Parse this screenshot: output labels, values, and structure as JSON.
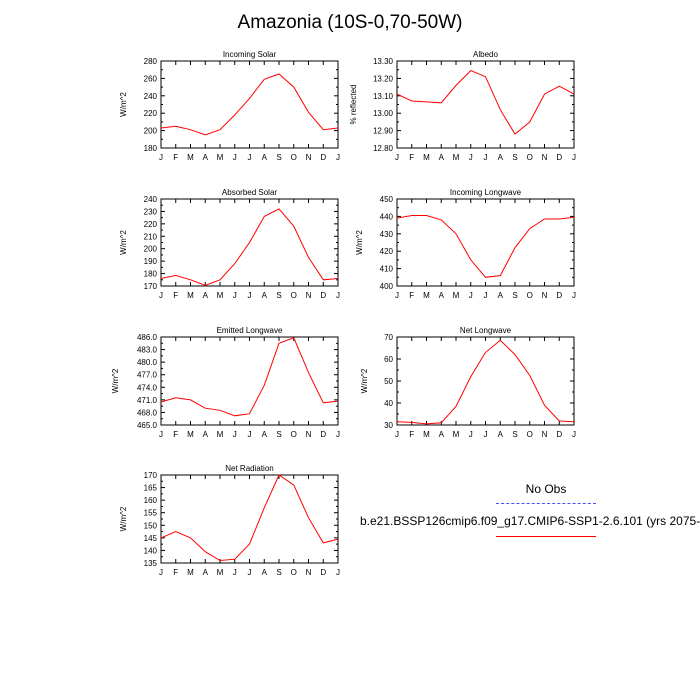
{
  "figure": {
    "title": "Amazonia (10S-0,70-50W)",
    "legend": {
      "obs_label": "No Obs",
      "case_label": "b.e21.BSSP126cmip6.f09_g17.CMIP6-SSP1-2.6.101 (yrs 2075-",
      "obs_color": "#4d4dff",
      "case_color": "#ff0000"
    }
  },
  "chart_data": [
    {
      "type": "line",
      "title": "Incoming Solar",
      "xlabel": "",
      "ylabel": "W/m^2",
      "categories": [
        "J",
        "F",
        "M",
        "A",
        "M",
        "J",
        "J",
        "A",
        "S",
        "O",
        "N",
        "D",
        "J"
      ],
      "ylim": [
        180,
        280
      ],
      "yticks": [
        180,
        200,
        220,
        240,
        260,
        280
      ],
      "ytick_labels": [
        "180",
        "200",
        "220",
        "240",
        "260",
        "280"
      ],
      "series": [
        {
          "name": "b.e21.BSSP126cmip6.f09_g17.CMIP6-SSP1-2.6.101",
          "color": "#ff0000",
          "values": [
            203,
            205,
            201,
            195,
            201,
            218,
            237,
            259,
            265,
            250,
            221,
            201,
            203
          ]
        }
      ]
    },
    {
      "type": "line",
      "title": "Albedo",
      "xlabel": "",
      "ylabel": "% reflected",
      "categories": [
        "J",
        "F",
        "M",
        "A",
        "M",
        "J",
        "J",
        "A",
        "S",
        "O",
        "N",
        "D",
        "J"
      ],
      "ylim": [
        12.8,
        13.3
      ],
      "yticks": [
        12.8,
        12.9,
        13.0,
        13.1,
        13.2,
        13.3
      ],
      "ytick_labels": [
        "12.80",
        "12.90",
        "13.00",
        "13.10",
        "13.20",
        "13.30"
      ],
      "series": [
        {
          "name": "b.e21.BSSP126cmip6.f09_g17.CMIP6-SSP1-2.6.101",
          "color": "#ff0000",
          "values": [
            13.11,
            13.07,
            13.065,
            13.06,
            13.16,
            13.245,
            13.21,
            13.02,
            12.88,
            12.95,
            13.11,
            13.155,
            13.11
          ]
        }
      ]
    },
    {
      "type": "line",
      "title": "Absorbed Solar",
      "xlabel": "",
      "ylabel": "W/m^2",
      "categories": [
        "J",
        "F",
        "M",
        "A",
        "M",
        "J",
        "J",
        "A",
        "S",
        "O",
        "N",
        "D",
        "J"
      ],
      "ylim": [
        170,
        240
      ],
      "yticks": [
        170,
        180,
        190,
        200,
        210,
        220,
        230,
        240
      ],
      "ytick_labels": [
        "170",
        "180",
        "190",
        "200",
        "210",
        "220",
        "230",
        "240"
      ],
      "series": [
        {
          "name": "b.e21.BSSP126cmip6.f09_g17.CMIP6-SSP1-2.6.101",
          "color": "#ff0000",
          "values": [
            176,
            178.5,
            175,
            170.5,
            175,
            188,
            205,
            226,
            232,
            218,
            193,
            175,
            176
          ]
        }
      ]
    },
    {
      "type": "line",
      "title": "Incoming Longwave",
      "xlabel": "",
      "ylabel": "W/m^2",
      "categories": [
        "J",
        "F",
        "M",
        "A",
        "M",
        "J",
        "J",
        "A",
        "S",
        "O",
        "N",
        "D",
        "J"
      ],
      "ylim": [
        400,
        450
      ],
      "yticks": [
        400,
        410,
        420,
        430,
        440,
        450
      ],
      "ytick_labels": [
        "400",
        "410",
        "420",
        "430",
        "440",
        "450"
      ],
      "series": [
        {
          "name": "b.e21.BSSP126cmip6.f09_g17.CMIP6-SSP1-2.6.101",
          "color": "#ff0000",
          "values": [
            439,
            440.5,
            440.5,
            438,
            430,
            415,
            405,
            406,
            422,
            433,
            438.5,
            438.5,
            439.5
          ]
        }
      ]
    },
    {
      "type": "line",
      "title": "Emitted Longwave",
      "xlabel": "",
      "ylabel": "W/m^2",
      "categories": [
        "J",
        "F",
        "M",
        "A",
        "M",
        "J",
        "J",
        "A",
        "S",
        "O",
        "N",
        "D",
        "J"
      ],
      "ylim": [
        465,
        486
      ],
      "yticks": [
        465,
        468,
        471,
        474,
        477,
        480,
        483,
        486
      ],
      "ytick_labels": [
        "465.0",
        "468.0",
        "471.0",
        "474.0",
        "477.0",
        "480.0",
        "483.0",
        "486.0"
      ],
      "series": [
        {
          "name": "b.e21.BSSP126cmip6.f09_g17.CMIP6-SSP1-2.6.101",
          "color": "#ff0000",
          "values": [
            470.5,
            471.5,
            471,
            469,
            468.5,
            467.2,
            467.7,
            474.5,
            484.5,
            485.8,
            477.5,
            470.3,
            470.7
          ]
        }
      ]
    },
    {
      "type": "line",
      "title": "Net Longwave",
      "xlabel": "",
      "ylabel": "W/m^2",
      "categories": [
        "J",
        "F",
        "M",
        "A",
        "M",
        "J",
        "J",
        "A",
        "S",
        "O",
        "N",
        "D",
        "J"
      ],
      "ylim": [
        30,
        70
      ],
      "yticks": [
        30,
        40,
        50,
        60,
        70
      ],
      "ytick_labels": [
        "30",
        "40",
        "50",
        "60",
        "70"
      ],
      "series": [
        {
          "name": "b.e21.BSSP126cmip6.f09_g17.CMIP6-SSP1-2.6.101",
          "color": "#ff0000",
          "values": [
            31.5,
            31.2,
            30.5,
            31,
            38.5,
            52,
            63,
            68.5,
            62,
            52.5,
            39,
            31.8,
            31.5
          ]
        }
      ]
    },
    {
      "type": "line",
      "title": "Net Radiation",
      "xlabel": "",
      "ylabel": "W/m^2",
      "categories": [
        "J",
        "F",
        "M",
        "A",
        "M",
        "J",
        "J",
        "A",
        "S",
        "O",
        "N",
        "D",
        "J"
      ],
      "ylim": [
        135,
        170
      ],
      "yticks": [
        135,
        140,
        145,
        150,
        155,
        160,
        165,
        170
      ],
      "ytick_labels": [
        "135",
        "140",
        "145",
        "150",
        "155",
        "160",
        "165",
        "170"
      ],
      "series": [
        {
          "name": "b.e21.BSSP126cmip6.f09_g17.CMIP6-SSP1-2.6.101",
          "color": "#ff0000",
          "values": [
            145,
            147.5,
            145,
            139.5,
            136,
            136.5,
            142.5,
            157,
            170,
            166,
            153,
            143,
            144.5
          ]
        }
      ]
    }
  ]
}
